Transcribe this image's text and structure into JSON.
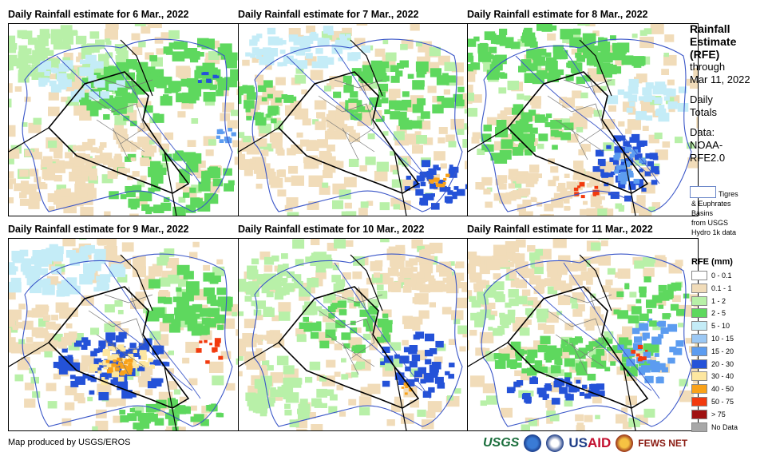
{
  "panels": [
    {
      "title": "Daily Rainfall estimate for 6 Mar., 2022",
      "pattern": "north_heavy"
    },
    {
      "title": "Daily Rainfall estimate for 7 Mar., 2022",
      "pattern": "southeast"
    },
    {
      "title": "Daily Rainfall estimate for 8 Mar., 2022",
      "pattern": "east_heavy"
    },
    {
      "title": "Daily Rainfall estimate for 9 Mar., 2022",
      "pattern": "southwest_heavy"
    },
    {
      "title": "Daily Rainfall estimate for 10 Mar., 2022",
      "pattern": "light"
    },
    {
      "title": "Daily Rainfall estimate for 11 Mar., 2022",
      "pattern": "east_band"
    }
  ],
  "sidebar": {
    "title_line1": "Rainfall",
    "title_line2": "Estimate",
    "title_line3": "(RFE)",
    "through": "through",
    "date": "Mar 11, 2022",
    "daily": "Daily",
    "totals": "Totals",
    "data": "Data:",
    "source1": "NOAA-",
    "source2": "RFE2.0"
  },
  "basins": {
    "line1": "Tigres",
    "line2": "& Euphrates",
    "line3": "Basins",
    "line4": "from USGS",
    "line5": "Hydro 1k data"
  },
  "legend": {
    "title": "RFE (mm)",
    "items": [
      {
        "label": "0 - 0.1",
        "color": "#ffffff"
      },
      {
        "label": "0.1 - 1",
        "color": "#f1dcb9"
      },
      {
        "label": "1 - 2",
        "color": "#b8f0a8"
      },
      {
        "label": "2 - 5",
        "color": "#5ed85e"
      },
      {
        "label": "5 - 10",
        "color": "#c4ecf7"
      },
      {
        "label": "10 - 15",
        "color": "#9cc8f4"
      },
      {
        "label": "15 - 20",
        "color": "#5c9cf0"
      },
      {
        "label": "20 - 30",
        "color": "#2452d8"
      },
      {
        "label": "30 - 40",
        "color": "#fde7a0"
      },
      {
        "label": "40 - 50",
        "color": "#f9a21a"
      },
      {
        "label": "50 - 75",
        "color": "#f23a0e"
      },
      {
        "label": "> 75",
        "color": "#a01212"
      },
      {
        "label": "No Data",
        "color": "#a8a8a8"
      }
    ]
  },
  "credit": "Map produced by USGS/EROS",
  "logos": {
    "usgs": "USGS",
    "usaid_a": "US",
    "usaid_b": "AID",
    "fews": "FEWS NET"
  }
}
